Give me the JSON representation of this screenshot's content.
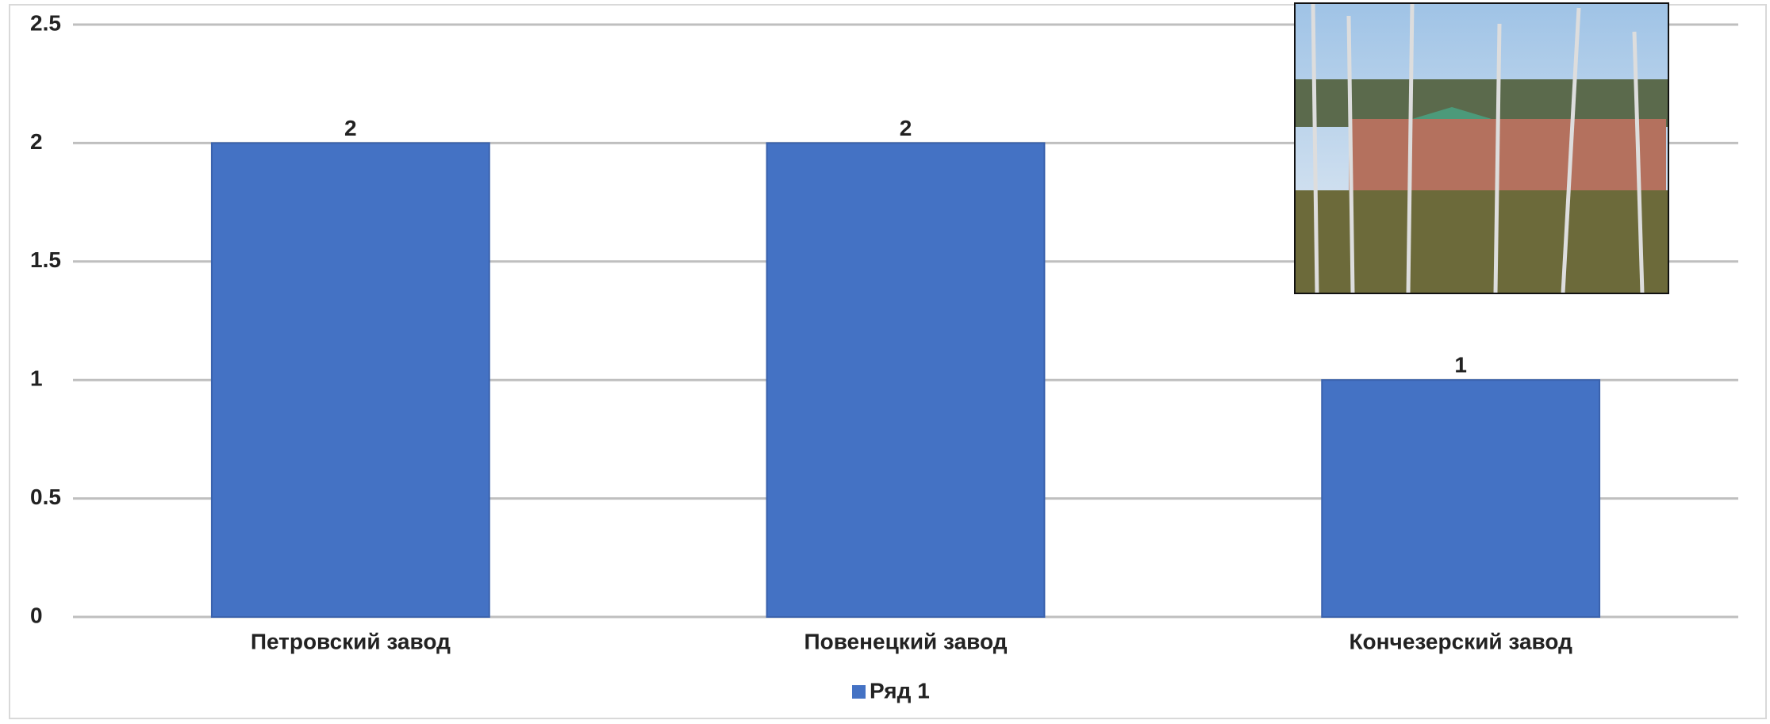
{
  "chart_data": {
    "type": "bar",
    "categories": [
      "Петровский завод",
      "Повенецкий завод",
      "Кончезерский завод"
    ],
    "series": [
      {
        "name": "Ряд 1",
        "color": "#4472c4",
        "values": [
          2,
          2,
          1
        ]
      }
    ],
    "ylim": [
      0,
      2.5
    ],
    "yticks": [
      0,
      0.5,
      1,
      1.5,
      2,
      2.5
    ],
    "grid": true,
    "legend": "bottom"
  }
}
